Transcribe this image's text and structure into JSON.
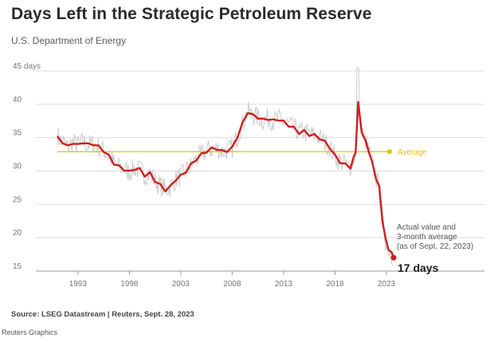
{
  "header": {
    "title": "Days Left in the Strategic Petroleum Reserve",
    "subtitle": "U.S. Department of Energy"
  },
  "footer": {
    "source": "Source: LSEG Datastream | Reuters, Sept. 28, 2023",
    "credit": "Reuters Graphics"
  },
  "chart_data": {
    "type": "line",
    "title": "Days Left in the Strategic Petroleum Reserve",
    "subtitle": "U.S. Department of Energy",
    "xlabel": "",
    "ylabel": "",
    "xlim": [
      1990,
      2025
    ],
    "ylim": [
      15,
      45
    ],
    "y_ticks": [
      15,
      20,
      25,
      30,
      35,
      40,
      45
    ],
    "y_tick_labels": [
      "15",
      "20",
      "25",
      "30",
      "35",
      "40",
      "45 days"
    ],
    "x_ticks": [
      1993,
      1998,
      2003,
      2008,
      2013,
      2018,
      2023
    ],
    "x_tick_labels": [
      "1993",
      "1998",
      "2003",
      "2008",
      "2013",
      "2018",
      "2023"
    ],
    "grid": "horizontal",
    "colors": {
      "average": "#e6c000",
      "three_month_average": "#cc1f1f",
      "actual": "#cccccc"
    },
    "average": {
      "label": "Average",
      "value": 32.9
    },
    "three_month_average": [
      [
        1991.0,
        35.2
      ],
      [
        1991.5,
        34.4
      ],
      [
        1992.0,
        33.6
      ],
      [
        1992.5,
        34.3
      ],
      [
        1993.0,
        33.8
      ],
      [
        1993.5,
        34.4
      ],
      [
        1994.0,
        33.9
      ],
      [
        1994.5,
        34.1
      ],
      [
        1995.0,
        33.6
      ],
      [
        1995.5,
        33.1
      ],
      [
        1996.0,
        32.2
      ],
      [
        1996.5,
        31.2
      ],
      [
        1997.0,
        30.6
      ],
      [
        1997.5,
        30.3
      ],
      [
        1998.0,
        29.8
      ],
      [
        1998.5,
        30.4
      ],
      [
        1999.0,
        30.2
      ],
      [
        1999.5,
        29.4
      ],
      [
        2000.0,
        29.6
      ],
      [
        2000.5,
        28.6
      ],
      [
        2001.0,
        27.8
      ],
      [
        2001.5,
        27.2
      ],
      [
        2002.0,
        27.6
      ],
      [
        2002.5,
        28.8
      ],
      [
        2003.0,
        29.2
      ],
      [
        2003.5,
        30.0
      ],
      [
        2004.0,
        30.9
      ],
      [
        2004.5,
        31.8
      ],
      [
        2005.0,
        32.4
      ],
      [
        2005.5,
        33.0
      ],
      [
        2006.0,
        33.3
      ],
      [
        2006.5,
        33.4
      ],
      [
        2007.0,
        32.9
      ],
      [
        2007.5,
        33.1
      ],
      [
        2008.0,
        33.4
      ],
      [
        2008.5,
        35.2
      ],
      [
        2009.0,
        37.0
      ],
      [
        2009.5,
        38.9
      ],
      [
        2010.0,
        38.3
      ],
      [
        2010.5,
        38.1
      ],
      [
        2011.0,
        37.6
      ],
      [
        2011.5,
        37.9
      ],
      [
        2012.0,
        37.5
      ],
      [
        2012.5,
        37.8
      ],
      [
        2013.0,
        37.3
      ],
      [
        2013.5,
        36.9
      ],
      [
        2014.0,
        36.4
      ],
      [
        2014.5,
        35.8
      ],
      [
        2015.0,
        35.9
      ],
      [
        2015.5,
        35.5
      ],
      [
        2016.0,
        35.3
      ],
      [
        2016.5,
        35.0
      ],
      [
        2017.0,
        34.3
      ],
      [
        2017.5,
        33.6
      ],
      [
        2018.0,
        32.2
      ],
      [
        2018.5,
        31.4
      ],
      [
        2019.0,
        30.9
      ],
      [
        2019.5,
        30.6
      ],
      [
        2019.8,
        31.8
      ],
      [
        2020.0,
        33.0
      ],
      [
        2020.25,
        40.1
      ],
      [
        2020.6,
        36.0
      ],
      [
        2021.0,
        34.2
      ],
      [
        2021.3,
        33.0
      ],
      [
        2021.6,
        31.2
      ],
      [
        2022.0,
        29.0
      ],
      [
        2022.3,
        27.5
      ],
      [
        2022.6,
        22.8
      ],
      [
        2022.9,
        19.8
      ],
      [
        2023.2,
        18.4
      ],
      [
        2023.5,
        17.6
      ],
      [
        2023.7,
        17.0
      ]
    ],
    "annotations": [
      {
        "lines": [
          "Actual value and",
          "3-month average",
          "(as of Sept. 22, 2023)"
        ],
        "value_label": "17 days",
        "x": 2023.7,
        "y": 17
      }
    ]
  }
}
